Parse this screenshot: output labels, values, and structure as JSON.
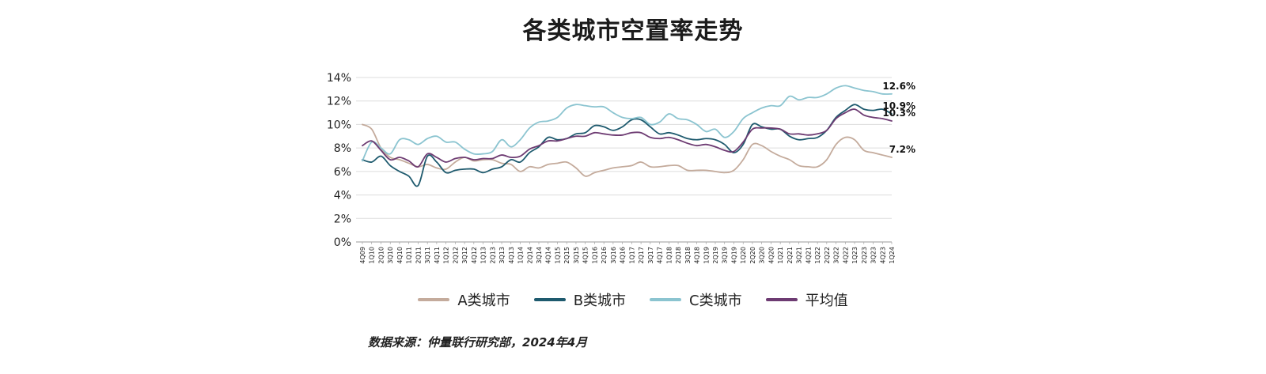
{
  "chart_data": {
    "type": "line",
    "title": "各类城市空置率走势",
    "x": [
      "4Q09",
      "1Q10",
      "2Q10",
      "3Q10",
      "4Q10",
      "1Q11",
      "2Q11",
      "3Q11",
      "4Q11",
      "1Q12",
      "2Q12",
      "3Q12",
      "4Q12",
      "1Q13",
      "2Q13",
      "3Q13",
      "4Q13",
      "1Q14",
      "2Q14",
      "3Q14",
      "4Q14",
      "1Q15",
      "2Q15",
      "3Q15",
      "4Q15",
      "1Q16",
      "2Q16",
      "3Q16",
      "4Q16",
      "1Q17",
      "2Q17",
      "3Q17",
      "4Q17",
      "1Q18",
      "2Q18",
      "3Q18",
      "4Q18",
      "1Q19",
      "2Q19",
      "3Q19",
      "4Q19",
      "1Q20",
      "2Q20",
      "3Q20",
      "4Q20",
      "1Q21",
      "2Q21",
      "3Q21",
      "4Q21",
      "1Q22",
      "2Q22",
      "3Q22",
      "4Q22",
      "1Q23",
      "2Q23",
      "3Q23",
      "4Q23",
      "1Q24"
    ],
    "y_ticks": [
      "0%",
      "2%",
      "4%",
      "6%",
      "8%",
      "10%",
      "12%",
      "14%"
    ],
    "ylim": [
      0,
      14
    ],
    "grid": true,
    "legend_position": "bottom",
    "series": [
      {
        "name": "A类城市",
        "color": "#c4ab9c",
        "values": [
          10.0,
          9.6,
          8.0,
          7.2,
          7.0,
          6.7,
          6.4,
          6.6,
          6.3,
          6.2,
          6.8,
          7.2,
          6.9,
          7.0,
          7.0,
          6.7,
          6.6,
          6.0,
          6.4,
          6.3,
          6.6,
          6.7,
          6.8,
          6.3,
          5.6,
          5.9,
          6.1,
          6.3,
          6.4,
          6.5,
          6.8,
          6.4,
          6.4,
          6.5,
          6.5,
          6.1,
          6.1,
          6.1,
          6.0,
          5.9,
          6.1,
          7.0,
          8.3,
          8.2,
          7.7,
          7.3,
          7.0,
          6.5,
          6.4,
          6.4,
          7.0,
          8.3,
          8.9,
          8.7,
          7.8,
          7.6,
          7.4,
          7.2
        ],
        "end_label": "7.2%"
      },
      {
        "name": "B类城市",
        "color": "#1e5a6e",
        "values": [
          7.0,
          6.8,
          7.3,
          6.5,
          6.0,
          5.6,
          4.8,
          7.3,
          6.8,
          5.9,
          6.1,
          6.2,
          6.2,
          5.9,
          6.2,
          6.4,
          7.0,
          6.8,
          7.6,
          8.1,
          8.9,
          8.7,
          8.8,
          9.2,
          9.3,
          9.9,
          9.8,
          9.5,
          9.8,
          10.4,
          10.4,
          9.8,
          9.2,
          9.3,
          9.1,
          8.8,
          8.7,
          8.8,
          8.7,
          8.3,
          7.6,
          8.3,
          10.0,
          9.8,
          9.6,
          9.6,
          9.0,
          8.7,
          8.8,
          8.9,
          9.5,
          10.6,
          11.2,
          11.7,
          11.3,
          11.2,
          11.3,
          10.9
        ],
        "end_label": "10.9%"
      },
      {
        "name": "C类城市",
        "color": "#8bc4d0",
        "values": [
          6.9,
          8.5,
          8.0,
          7.5,
          8.7,
          8.7,
          8.3,
          8.8,
          9.0,
          8.5,
          8.5,
          7.9,
          7.5,
          7.5,
          7.7,
          8.7,
          8.1,
          8.7,
          9.7,
          10.2,
          10.3,
          10.6,
          11.4,
          11.7,
          11.6,
          11.5,
          11.5,
          11.0,
          10.6,
          10.5,
          10.6,
          10.0,
          10.2,
          10.9,
          10.5,
          10.4,
          10.0,
          9.4,
          9.6,
          8.9,
          9.4,
          10.5,
          11.0,
          11.4,
          11.6,
          11.6,
          12.4,
          12.1,
          12.3,
          12.3,
          12.6,
          13.1,
          13.3,
          13.1,
          12.9,
          12.8,
          12.6,
          12.6
        ],
        "end_label": "12.6%"
      },
      {
        "name": "平均值",
        "color": "#6d3b72",
        "values": [
          8.2,
          8.6,
          7.8,
          7.0,
          7.2,
          6.9,
          6.4,
          7.5,
          7.2,
          6.8,
          7.1,
          7.2,
          7.0,
          7.1,
          7.1,
          7.4,
          7.2,
          7.3,
          7.9,
          8.2,
          8.6,
          8.6,
          8.8,
          9.0,
          9.0,
          9.3,
          9.2,
          9.1,
          9.1,
          9.3,
          9.3,
          8.9,
          8.8,
          8.9,
          8.7,
          8.4,
          8.2,
          8.3,
          8.1,
          7.8,
          7.7,
          8.5,
          9.6,
          9.7,
          9.7,
          9.6,
          9.2,
          9.2,
          9.1,
          9.2,
          9.5,
          10.5,
          11.0,
          11.3,
          10.8,
          10.6,
          10.5,
          10.3
        ],
        "end_label": "10.3%"
      }
    ],
    "source_note": "数据来源：仲量联行研究部，2024年4月"
  }
}
